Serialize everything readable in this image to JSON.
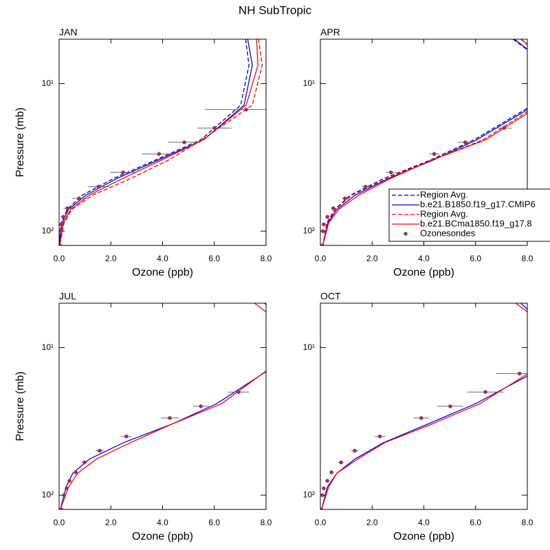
{
  "title": "NH SubTropic",
  "chart_data": [
    {
      "type": "line",
      "title": "JAN",
      "xlabel": "Ozone (ppb)",
      "ylabel": "Pressure (mb)",
      "log_y": true,
      "xlim": [
        0,
        8
      ],
      "xticks": [
        {
          "value": 0,
          "label": "0.0"
        },
        {
          "value": 2,
          "label": "2.0"
        },
        {
          "value": 4,
          "label": "4.0"
        },
        {
          "value": 6,
          "label": "6.0"
        },
        {
          "value": 8,
          "label": "8.0"
        }
      ],
      "ylim": [
        125,
        5
      ],
      "yticks": [
        {
          "value": 10,
          "label": "10¹"
        },
        {
          "value": 100,
          "label": "10²"
        }
      ],
      "series": [
        {
          "color": "#000080",
          "dash": true,
          "mode": "lines",
          "y": [
            5,
            7.5,
            14,
            24,
            33,
            44,
            57,
            71,
            88,
            124
          ],
          "x": [
            7.21,
            7.34,
            7.02,
            5.48,
            3.72,
            2.1,
            0.9,
            0.32,
            0.08,
            0.0
          ]
        },
        {
          "color": "#0000ff",
          "dash": false,
          "mode": "lines",
          "y": [
            5,
            7.5,
            14,
            24,
            33,
            44,
            57,
            71,
            88,
            124
          ],
          "x": [
            7.29,
            7.47,
            7.15,
            5.59,
            3.83,
            2.23,
            1.04,
            0.37,
            0.11,
            0.0
          ]
        },
        {
          "color": "#e00000",
          "dash": true,
          "mode": "lines",
          "y": [
            5,
            7.5,
            14,
            24,
            33,
            44,
            57,
            71,
            88,
            124
          ],
          "x": [
            7.71,
            7.85,
            7.47,
            5.53,
            4.23,
            2.77,
            1.3,
            0.5,
            0.19,
            0.03
          ]
        },
        {
          "color": "#ff0000",
          "dash": false,
          "mode": "lines",
          "y": [
            5,
            7.5,
            14,
            24,
            33,
            44,
            57,
            71,
            88,
            124
          ],
          "x": [
            7.63,
            7.69,
            7.23,
            5.59,
            3.96,
            2.45,
            1.17,
            0.45,
            0.16,
            0.03
          ]
        },
        {
          "color": "#a0305a",
          "mode": "markers",
          "y": [
            15,
            20,
            25,
            30,
            40,
            50,
            60,
            70,
            80,
            90,
            100,
            125
          ],
          "x": [
            7.23,
            6.0,
            4.84,
            3.86,
            2.47,
            1.52,
            0.77,
            0.32,
            0.16,
            0.08,
            0.05,
            0.03
          ],
          "xerr": [
            1.6,
            0.66,
            0.62,
            0.65,
            0.5,
            0.4,
            0.27,
            0.15,
            0.08,
            0.05,
            0.04,
            0.03
          ]
        }
      ]
    },
    {
      "type": "line",
      "title": "APR",
      "xlabel": "Ozone (ppb)",
      "log_y": true,
      "xlim": [
        0,
        8
      ],
      "xticks": [
        {
          "value": 0,
          "label": "0.0"
        },
        {
          "value": 2,
          "label": "2.0"
        },
        {
          "value": 4,
          "label": "4.0"
        },
        {
          "value": 6,
          "label": "6.0"
        },
        {
          "value": 8,
          "label": "8.0"
        }
      ],
      "ylim": [
        125,
        5
      ],
      "yticks": [
        {
          "value": 10,
          "label": "10¹"
        },
        {
          "value": 100,
          "label": "10²"
        }
      ],
      "legend": "right",
      "series": [
        {
          "name": "Region Avg.",
          "color": "#000080",
          "dash": true,
          "mode": "lines",
          "y": [
            5,
            7.5,
            14,
            24,
            33,
            44,
            57,
            71,
            88,
            124
          ],
          "x": [
            7.45,
            8.8,
            8.2,
            5.95,
            4.25,
            2.45,
            1.17,
            0.56,
            0.25,
            0.1
          ]
        },
        {
          "name": "b.e21.B1850.f19_g17.CMIP6",
          "color": "#0000ff",
          "dash": false,
          "mode": "lines",
          "y": [
            5,
            7.5,
            14,
            24,
            33,
            44,
            57,
            71,
            88,
            124
          ],
          "x": [
            7.5,
            8.8,
            8.3,
            6.05,
            4.36,
            2.63,
            1.35,
            0.64,
            0.29,
            0.1
          ]
        },
        {
          "name": "Region Avg.",
          "color": "#e00000",
          "dash": true,
          "mode": "lines",
          "y": [
            5,
            7.5,
            14,
            24,
            33,
            44,
            57,
            71,
            88,
            124
          ],
          "x": [
            7.75,
            8.9,
            8.4,
            6.3,
            4.3,
            2.58,
            1.22,
            0.58,
            0.27,
            0.1
          ]
        },
        {
          "name": "b.e21.BCma1850.f19_g17.8",
          "color": "#ff0000",
          "dash": false,
          "mode": "lines",
          "y": [
            5,
            7.5,
            14,
            24,
            33,
            44,
            57,
            71,
            88,
            124
          ],
          "x": [
            7.77,
            8.9,
            8.5,
            6.4,
            4.3,
            2.71,
            1.49,
            0.72,
            0.32,
            0.1
          ]
        },
        {
          "name": "Ozonesondes",
          "color": "#a0305a",
          "mode": "markers",
          "y": [
            20,
            25,
            30,
            40,
            50,
            60,
            70,
            80,
            90,
            100,
            125
          ],
          "x": [
            7.1,
            5.6,
            4.4,
            2.73,
            1.75,
            0.95,
            0.5,
            0.27,
            0.13,
            0.1,
            0.08
          ],
          "xerr": [
            0.3,
            0.3,
            0.2,
            0.2,
            0.15,
            0.1,
            0.08,
            0.06,
            0.05,
            0.04,
            0.03
          ]
        }
      ]
    },
    {
      "type": "line",
      "title": "JUL",
      "xlabel": "Ozone (ppb)",
      "ylabel": "Pressure (mb)",
      "log_y": true,
      "xlim": [
        0,
        8
      ],
      "xticks": [
        {
          "value": 0,
          "label": "0.0"
        },
        {
          "value": 2,
          "label": "2.0"
        },
        {
          "value": 4,
          "label": "4.0"
        },
        {
          "value": 6,
          "label": "6.0"
        },
        {
          "value": 8,
          "label": "8.0"
        }
      ],
      "ylim": [
        125,
        5
      ],
      "yticks": [
        {
          "value": 10,
          "label": "10¹"
        },
        {
          "value": 100,
          "label": "10²"
        }
      ],
      "series": [
        {
          "color": "#0000ff",
          "dash": false,
          "mode": "lines",
          "y": [
            5,
            7.5,
            14,
            24,
            33,
            44,
            57,
            71,
            88,
            124
          ],
          "x": [
            7.95,
            8.8,
            8.15,
            6.09,
            4.36,
            2.5,
            1.17,
            0.53,
            0.27,
            0.05
          ]
        },
        {
          "color": "#ff0000",
          "dash": false,
          "mode": "lines",
          "y": [
            5,
            7.5,
            14,
            24,
            33,
            44,
            57,
            71,
            88,
            124
          ],
          "x": [
            7.55,
            8.9,
            8.1,
            6.28,
            4.36,
            2.77,
            1.44,
            0.72,
            0.37,
            0.05
          ]
        },
        {
          "color": "#a0305a",
          "mode": "markers",
          "y": [
            20,
            25,
            30,
            40,
            50,
            60,
            70,
            80,
            90,
            100,
            125
          ],
          "x": [
            6.94,
            5.48,
            4.28,
            2.6,
            1.57,
            0.98,
            0.64,
            0.4,
            0.29,
            0.19,
            0.08
          ],
          "xerr": [
            0.4,
            0.3,
            0.35,
            0.2,
            0.15,
            0.1,
            0.08,
            0.06,
            0.05,
            0.04,
            0.03
          ]
        }
      ]
    },
    {
      "type": "line",
      "title": "OCT",
      "xlabel": "Ozone (ppb)",
      "log_y": true,
      "xlim": [
        0,
        8
      ],
      "xticks": [
        {
          "value": 0,
          "label": "0.0"
        },
        {
          "value": 2,
          "label": "2.0"
        },
        {
          "value": 4,
          "label": "4.0"
        },
        {
          "value": 6,
          "label": "6.0"
        },
        {
          "value": 8,
          "label": "8.0"
        }
      ],
      "ylim": [
        125,
        5
      ],
      "yticks": [
        {
          "value": 10,
          "label": "10¹"
        },
        {
          "value": 100,
          "label": "10²"
        }
      ],
      "series": [
        {
          "color": "#0000ff",
          "dash": false,
          "mode": "lines",
          "y": [
            5,
            7.5,
            14,
            24,
            33,
            44,
            57,
            71,
            88,
            124
          ],
          "x": [
            7.75,
            8.8,
            8.5,
            6.0,
            4.15,
            2.45,
            1.33,
            0.64,
            0.27,
            0.05
          ]
        },
        {
          "color": "#ff0000",
          "dash": false,
          "mode": "lines",
          "y": [
            5,
            7.5,
            14,
            24,
            33,
            44,
            57,
            71,
            88,
            124
          ],
          "x": [
            7.55,
            8.9,
            8.3,
            6.17,
            4.31,
            2.5,
            1.44,
            0.64,
            0.32,
            0.05
          ]
        },
        {
          "color": "#a0305a",
          "mode": "markers",
          "y": [
            15,
            20,
            25,
            30,
            40,
            50,
            60,
            70,
            80,
            90,
            100,
            125
          ],
          "x": [
            7.7,
            6.38,
            5.02,
            3.9,
            2.3,
            1.33,
            0.8,
            0.43,
            0.27,
            0.13,
            0.08,
            0.03
          ],
          "xerr": [
            0.9,
            0.7,
            0.5,
            0.3,
            0.2,
            0.15,
            0.1,
            0.08,
            0.06,
            0.05,
            0.04,
            0.03
          ]
        }
      ]
    }
  ]
}
